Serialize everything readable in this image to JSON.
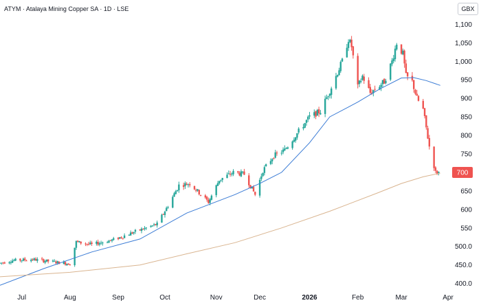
{
  "header": {
    "title": "ATYM · Atalaya Mining Copper SA · 1D · LSE",
    "currency": "GBX"
  },
  "colors": {
    "up": "#26a69a",
    "down": "#ef5350",
    "ma_fast": "#3a7bd5",
    "ma_slow": "#d9b48f",
    "last_price_bg": "#ef5350"
  },
  "chart_data": {
    "type": "candlestick",
    "y_ticks": [
      "1,100",
      "1,050",
      "1,000",
      "950",
      "900",
      "850",
      "800",
      "750",
      "700",
      "650",
      "600",
      "550",
      "500.0",
      "450.0",
      "400.0"
    ],
    "ylim": [
      390,
      1110
    ],
    "x_labels": [
      {
        "label": "Jul",
        "date": "2025-07-01",
        "bold": false
      },
      {
        "label": "Aug",
        "date": "2025-08-01",
        "bold": false
      },
      {
        "label": "Sep",
        "date": "2025-09-01",
        "bold": false
      },
      {
        "label": "Oct",
        "date": "2025-10-01",
        "bold": false
      },
      {
        "label": "Nov",
        "date": "2025-11-03",
        "bold": false
      },
      {
        "label": "Dec",
        "date": "2025-12-01",
        "bold": false
      },
      {
        "label": "2026",
        "date": "2026-01-02",
        "bold": true
      },
      {
        "label": "Feb",
        "date": "2026-02-02",
        "bold": false
      },
      {
        "label": "Mar",
        "date": "2026-03-02",
        "bold": false
      },
      {
        "label": "Apr",
        "date": "2026-04-01",
        "bold": false
      }
    ],
    "xlim": [
      "2025-06-17",
      "2026-04-01"
    ],
    "last_price": "700",
    "price_path": [
      [
        "2025-06-17",
        455
      ],
      [
        "2025-06-25",
        462
      ],
      [
        "2025-07-08",
        465
      ],
      [
        "2025-07-22",
        458
      ],
      [
        "2025-08-01",
        453
      ],
      [
        "2025-08-05",
        512
      ],
      [
        "2025-08-15",
        505
      ],
      [
        "2025-08-29",
        518
      ],
      [
        "2025-09-12",
        540
      ],
      [
        "2025-09-26",
        560
      ],
      [
        "2025-10-03",
        610
      ],
      [
        "2025-10-10",
        665
      ],
      [
        "2025-10-17",
        670
      ],
      [
        "2025-10-29",
        620
      ],
      [
        "2025-11-05",
        680
      ],
      [
        "2025-11-14",
        700
      ],
      [
        "2025-11-21",
        695
      ],
      [
        "2025-11-28",
        640
      ],
      [
        "2025-12-03",
        705
      ],
      [
        "2025-12-10",
        745
      ],
      [
        "2025-12-17",
        760
      ],
      [
        "2025-12-24",
        800
      ],
      [
        "2026-01-02",
        850
      ],
      [
        "2026-01-09",
        865
      ],
      [
        "2026-01-16",
        930
      ],
      [
        "2026-01-23",
        1000
      ],
      [
        "2026-01-27",
        1060
      ],
      [
        "2026-01-29",
        1040
      ],
      [
        "2026-02-02",
        930
      ],
      [
        "2026-02-05",
        960
      ],
      [
        "2026-02-10",
        915
      ],
      [
        "2026-02-19",
        945
      ],
      [
        "2026-02-24",
        1000
      ],
      [
        "2026-02-27",
        1050
      ],
      [
        "2026-03-03",
        1020
      ],
      [
        "2026-03-05",
        960
      ],
      [
        "2026-03-09",
        945
      ],
      [
        "2026-03-12",
        900
      ],
      [
        "2026-03-16",
        870
      ],
      [
        "2026-03-18",
        820
      ],
      [
        "2026-03-20",
        770
      ],
      [
        "2026-03-24",
        700
      ],
      [
        "2026-03-26",
        700
      ]
    ],
    "series": [
      {
        "points": [
          [
            "2025-06-17",
            395
          ],
          [
            "2025-07-15",
            440
          ],
          [
            "2025-08-15",
            485
          ],
          [
            "2025-09-15",
            520
          ],
          [
            "2025-10-15",
            590
          ],
          [
            "2025-11-15",
            640
          ],
          [
            "2025-12-01",
            670
          ],
          [
            "2025-12-15",
            700
          ],
          [
            "2026-01-02",
            780
          ],
          [
            "2026-01-15",
            850
          ],
          [
            "2026-02-02",
            890
          ],
          [
            "2026-02-16",
            925
          ],
          [
            "2026-03-02",
            955
          ],
          [
            "2026-03-10",
            956
          ],
          [
            "2026-03-18",
            948
          ],
          [
            "2026-03-27",
            935
          ]
        ]
      },
      {
        "points": [
          [
            "2025-06-17",
            418
          ],
          [
            "2025-08-01",
            430
          ],
          [
            "2025-09-15",
            450
          ],
          [
            "2025-10-15",
            480
          ],
          [
            "2025-11-15",
            510
          ],
          [
            "2025-12-15",
            550
          ],
          [
            "2026-01-15",
            595
          ],
          [
            "2026-02-15",
            645
          ],
          [
            "2026-03-02",
            670
          ],
          [
            "2026-03-16",
            688
          ],
          [
            "2026-03-27",
            698
          ]
        ]
      }
    ]
  }
}
